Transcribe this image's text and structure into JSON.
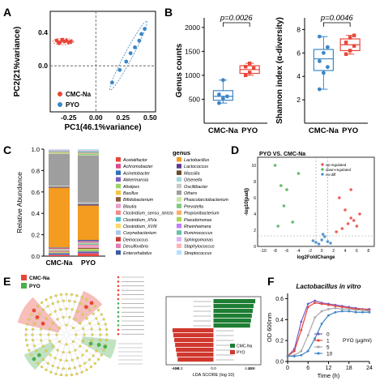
{
  "panels": {
    "A": {
      "letter": "A",
      "chart_data": {
        "type": "scatter",
        "xlabel": "PC1(46.1%variance)",
        "ylabel": "PC2(21%variance)",
        "xticks": [
          "-0.25",
          "0.00",
          "0.25",
          "0.50"
        ],
        "yticks": [
          "0.4",
          "0.0"
        ],
        "xlim": [
          -0.42,
          0.55
        ],
        "ylim": [
          -0.55,
          0.65
        ],
        "series": [
          {
            "name": "CMC-Na",
            "color": "#e8463a",
            "x": [
              -0.36,
              -0.33,
              -0.31,
              -0.29,
              -0.27,
              -0.25,
              -0.23,
              -0.34
            ],
            "y": [
              0.3,
              0.28,
              0.31,
              0.29,
              0.3,
              0.28,
              0.29,
              0.27
            ]
          },
          {
            "name": "PYO",
            "color": "#3d86c6",
            "x": [
              0.15,
              0.22,
              0.28,
              0.32,
              0.36,
              0.4,
              0.42,
              0.45
            ],
            "y": [
              -0.2,
              -0.05,
              0.05,
              0.15,
              0.22,
              0.3,
              0.38,
              0.44
            ]
          }
        ]
      }
    },
    "B": {
      "letter": "B",
      "charts": [
        {
          "type": "box",
          "ylabel": "Genus counts",
          "pvalue": "p=0.0026",
          "yticks": [
            "500",
            "1000",
            "1500",
            "2000"
          ],
          "ylim": [
            0,
            2200
          ],
          "categories": [
            "CMC-Na",
            "PYO"
          ],
          "colors": [
            "#3d86c6",
            "#e8463a"
          ],
          "points": [
            [
              420,
              520,
              560,
              600,
              900
            ],
            [
              1000,
              1060,
              1150,
              1180,
              1250
            ]
          ],
          "boxes": [
            {
              "min": 420,
              "q1": 480,
              "med": 560,
              "q3": 680,
              "max": 900
            },
            {
              "min": 1000,
              "q1": 1040,
              "med": 1120,
              "q3": 1200,
              "max": 1250
            }
          ]
        },
        {
          "type": "box",
          "ylabel": "Shannon index (α-diversity)",
          "pvalue": "p=0.0046",
          "yticks": [
            "2",
            "4",
            "6",
            "8"
          ],
          "ylim": [
            0,
            9
          ],
          "categories": [
            "CMC-Na",
            "PYO"
          ],
          "colors": [
            "#3d86c6",
            "#e8463a"
          ],
          "points": [
            [
              2.9,
              4.3,
              4.8,
              5.3,
              6.0,
              6.5,
              7.4
            ],
            [
              5.9,
              6.2,
              6.6,
              6.9,
              7.3,
              7.5
            ]
          ],
          "boxes": [
            {
              "min": 2.9,
              "q1": 4.5,
              "med": 5.5,
              "q3": 6.3,
              "max": 7.4
            },
            {
              "min": 5.9,
              "q1": 6.2,
              "med": 6.7,
              "q3": 7.2,
              "max": 7.5
            }
          ]
        }
      ]
    },
    "C": {
      "letter": "C",
      "chart_data": {
        "type": "bar",
        "stacked": true,
        "ylabel": "Relative Abundance",
        "yticks": [
          "0.0",
          "0.2",
          "0.4",
          "0.6",
          "0.8",
          "1.0"
        ],
        "ylim": [
          0,
          1
        ],
        "categories": [
          "CMC-Na",
          "PYO"
        ],
        "legend_title": "genus",
        "series": [
          {
            "name": "Acetatifactor",
            "color": "#e8463a",
            "values": [
              0.01,
              0.02
            ]
          },
          {
            "name": "Achromobacter",
            "color": "#d94b8a",
            "values": [
              0.005,
              0.01
            ]
          },
          {
            "name": "Acinetobacter",
            "color": "#2f6fb3",
            "values": [
              0.01,
              0.005
            ]
          },
          {
            "name": "Akkermansia",
            "color": "#7b5cc0",
            "values": [
              0.005,
              0.01
            ]
          },
          {
            "name": "Alistipes",
            "color": "#9dd36b",
            "values": [
              0.005,
              0.02
            ]
          },
          {
            "name": "Bacillus",
            "color": "#f4c542",
            "values": [
              0.005,
              0.005
            ]
          },
          {
            "name": "Bifidobacterium",
            "color": "#8c5a3c",
            "values": [
              0.005,
              0.01
            ]
          },
          {
            "name": "Blautia",
            "color": "#eda0c8",
            "values": [
              0.005,
              0.02
            ]
          },
          {
            "name": "Clostridium_sensu_stricto",
            "color": "#f58a8a",
            "values": [
              0.005,
              0.01
            ]
          },
          {
            "name": "Clostridium_XIVa",
            "color": "#4ec1c8",
            "values": [
              0.005,
              0.01
            ]
          },
          {
            "name": "Clostridium_XVIII",
            "color": "#ffd86b",
            "values": [
              0.005,
              0.005
            ]
          },
          {
            "name": "Corynebacterium",
            "color": "#a9c9e8",
            "values": [
              0.005,
              0.005
            ]
          },
          {
            "name": "Deinococcus",
            "color": "#c83c36",
            "values": [
              0.005,
              0.005
            ]
          },
          {
            "name": "Desulfovibrio",
            "color": "#e57bb4",
            "values": [
              0.005,
              0.01
            ]
          },
          {
            "name": "Enterorhabdus",
            "color": "#3b5aa0",
            "values": [
              0.005,
              0.01
            ]
          },
          {
            "name": "Lactobacillus",
            "color": "#f39c1f",
            "values": [
              0.58,
              0.33
            ]
          },
          {
            "name": "Lactococcus",
            "color": "#5b3a8e",
            "values": [
              0.005,
              0.01
            ]
          },
          {
            "name": "Massilia",
            "color": "#6b4b2a",
            "values": [
              0.005,
              0.005
            ]
          },
          {
            "name": "Olsenella",
            "color": "#a0d8e0",
            "values": [
              0.005,
              0.005
            ]
          },
          {
            "name": "Oscillibacter",
            "color": "#c7c7c7",
            "values": [
              0.005,
              0.01
            ]
          },
          {
            "name": "Others",
            "color": "#9e9e9e",
            "values": [
              0.31,
              0.45
            ]
          },
          {
            "name": "Phascolarctobacterium",
            "color": "#c8e6a0",
            "values": [
              0.005,
              0.005
            ]
          },
          {
            "name": "Prevotella",
            "color": "#7fc97f",
            "values": [
              0.005,
              0.01
            ]
          },
          {
            "name": "Propionibacterium",
            "color": "#fdae6b",
            "values": [
              0.005,
              0.005
            ]
          },
          {
            "name": "Pseudomonas",
            "color": "#a6d854",
            "values": [
              0.005,
              0.005
            ]
          },
          {
            "name": "Rheinheimera",
            "color": "#bf80ff",
            "values": [
              0.005,
              0.005
            ]
          },
          {
            "name": "Ruminococcus",
            "color": "#66c2a5",
            "values": [
              0.005,
              0.01
            ]
          },
          {
            "name": "Sphingomonas",
            "color": "#d9b3ff",
            "values": [
              0.005,
              0.005
            ]
          },
          {
            "name": "Staphylococcus",
            "color": "#ffb3b3",
            "values": [
              0.005,
              0.005
            ]
          },
          {
            "name": "Streptococcus",
            "color": "#b3e0ff",
            "values": [
              0.005,
              0.01
            ]
          }
        ]
      }
    },
    "D": {
      "letter": "D",
      "chart_data": {
        "type": "scatter",
        "title": "PYO VS. CMC-Na",
        "xlabel": "log2FoldChange",
        "ylabel": "-log10(padj)",
        "xticks": [
          "-10",
          "-8",
          "-6",
          "-4",
          "-2",
          "0",
          "2",
          "4",
          "6",
          "8"
        ],
        "yticks": [
          "0",
          "2",
          "4",
          "6",
          "8",
          "10"
        ],
        "xlim": [
          -11,
          9
        ],
        "ylim": [
          0,
          11
        ],
        "series": [
          {
            "name": "up-regulated",
            "color": "#e8463a",
            "x": [
              3,
              4,
              5,
              6,
              4.5,
              5.5,
              3.5,
              6.5,
              2.5,
              5
            ],
            "y": [
              6,
              4.5,
              3.5,
              2.5,
              2.8,
              3.2,
              2.2,
              4,
              1.8,
              7
            ]
          },
          {
            "name": "down-regulated",
            "color": "#4caf50",
            "x": [
              -8,
              -7,
              -6,
              -6.5,
              -5,
              -7.5,
              -4
            ],
            "y": [
              10,
              7.5,
              7,
              5,
              3,
              2.5,
              9
            ]
          },
          {
            "name": "no-diff",
            "color": "#3d86c6",
            "x": [
              -1,
              0,
              1,
              -0.5,
              0.5,
              1.5,
              -1.5,
              0.2
            ],
            "y": [
              0.5,
              0.8,
              0.6,
              0.3,
              1.2,
              0.4,
              0.7,
              1.5
            ]
          }
        ]
      }
    },
    "E": {
      "letter": "E",
      "legend": [
        {
          "name": "CMC-Na",
          "color": "#e8463a"
        },
        {
          "name": "PYO",
          "color": "#4caf50"
        }
      ],
      "lda_chart": {
        "type": "bar",
        "xlabel": "LDA SCORE (log 10)",
        "xticks": [
          "-4.8",
          "-4.6",
          "-4.2",
          "0.0",
          "4.2",
          "4.6",
          "4.8"
        ],
        "legend": [
          {
            "name": "CMC-Na",
            "color": "#1e7e34"
          },
          {
            "name": "PYO",
            "color": "#d0372d"
          }
        ],
        "bars": [
          {
            "group": "CMC-Na",
            "value": 4.9
          },
          {
            "group": "CMC-Na",
            "value": 4.7
          },
          {
            "group": "CMC-Na",
            "value": 4.6
          },
          {
            "group": "CMC-Na",
            "value": 4.5
          },
          {
            "group": "CMC-Na",
            "value": 4.4
          },
          {
            "group": "CMC-Na",
            "value": 4.3
          },
          {
            "group": "PYO",
            "value": -4.8
          },
          {
            "group": "PYO",
            "value": -4.7
          },
          {
            "group": "PYO",
            "value": -4.6
          },
          {
            "group": "PYO",
            "value": -4.5
          },
          {
            "group": "PYO",
            "value": -4.4
          },
          {
            "group": "PYO",
            "value": -4.3
          },
          {
            "group": "PYO",
            "value": -4.2
          }
        ]
      }
    },
    "F": {
      "letter": "F",
      "chart_data": {
        "type": "line",
        "title": "Lactobacillus in vitro",
        "xlabel": "Time (h)",
        "ylabel": "OD 600nm",
        "legend_title": "PYO (μg/ml)",
        "xticks": [
          "0",
          "6",
          "12",
          "18",
          "24"
        ],
        "yticks": [
          "0.0",
          "0.2",
          "0.4",
          "0.6"
        ],
        "xlim": [
          0,
          24
        ],
        "ylim": [
          0,
          0.65
        ],
        "x": [
          0,
          2,
          4,
          6,
          8,
          10,
          12,
          14,
          16,
          18,
          20,
          22,
          24
        ],
        "series": [
          {
            "name": "0",
            "color": "#7b5cc0",
            "values": [
              0.05,
              0.12,
              0.38,
              0.55,
              0.58,
              0.56,
              0.55,
              0.54,
              0.53,
              0.52,
              0.51,
              0.5,
              0.5
            ]
          },
          {
            "name": "1",
            "color": "#e8463a",
            "values": [
              0.05,
              0.1,
              0.3,
              0.52,
              0.56,
              0.55,
              0.54,
              0.53,
              0.52,
              0.51,
              0.5,
              0.5,
              0.49
            ]
          },
          {
            "name": "5",
            "color": "#a8a8a8",
            "values": [
              0.05,
              0.06,
              0.1,
              0.25,
              0.42,
              0.48,
              0.5,
              0.51,
              0.5,
              0.5,
              0.49,
              0.49,
              0.48
            ]
          },
          {
            "name": "10",
            "color": "#3d86c6",
            "values": [
              0.05,
              0.05,
              0.06,
              0.1,
              0.22,
              0.36,
              0.44,
              0.47,
              0.48,
              0.48,
              0.47,
              0.47,
              0.47
            ]
          }
        ]
      }
    }
  }
}
